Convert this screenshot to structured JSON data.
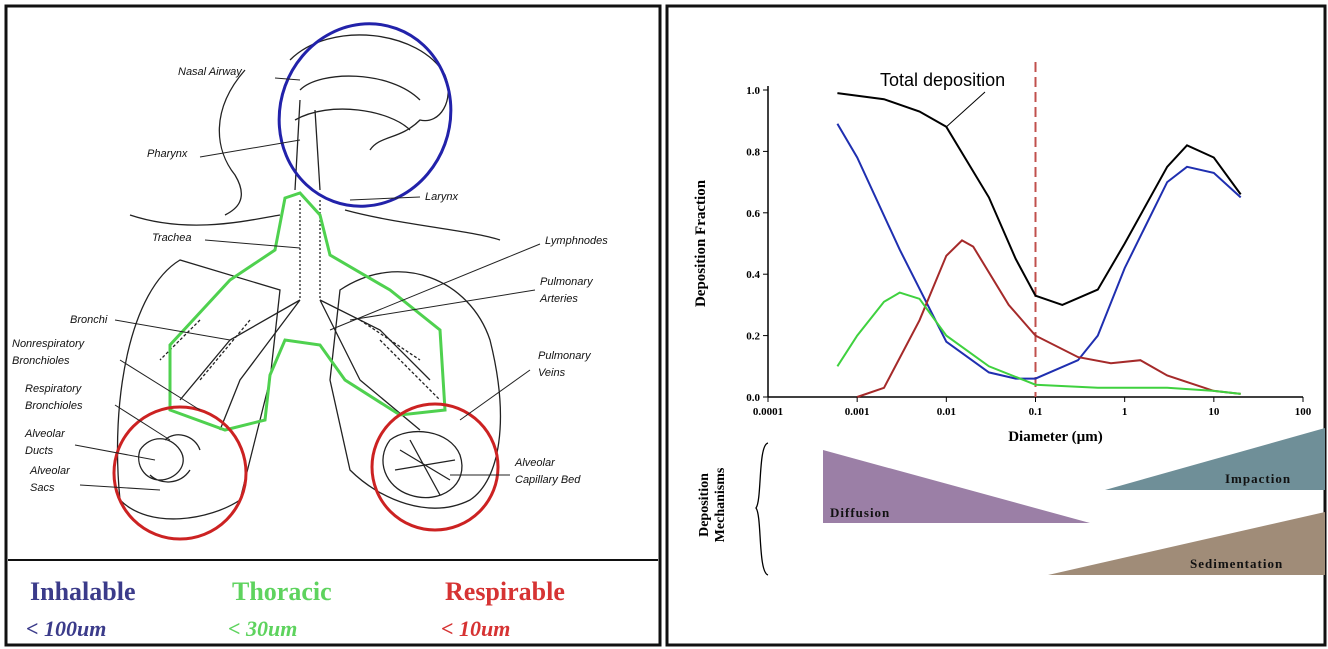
{
  "diagram": {
    "labels": [
      {
        "lines": [
          "Nasal Airway"
        ]
      },
      {
        "lines": [
          "Pharynx"
        ]
      },
      {
        "lines": [
          "Larynx"
        ]
      },
      {
        "lines": [
          "Trachea"
        ]
      },
      {
        "lines": [
          "Lymphnodes"
        ]
      },
      {
        "lines": [
          "Pulmonary",
          "Arteries"
        ]
      },
      {
        "lines": [
          "Bronchi"
        ]
      },
      {
        "lines": [
          "Nonrespiratory",
          "Bronchioles"
        ]
      },
      {
        "lines": [
          "Respiratory",
          "Bronchioles"
        ]
      },
      {
        "lines": [
          "Pulmonary",
          "Veins"
        ]
      },
      {
        "lines": [
          "Alveolar",
          "Ducts"
        ]
      },
      {
        "lines": [
          "Alveolar",
          "Sacs"
        ]
      },
      {
        "lines": [
          "Alveolar",
          "Capillary Bed"
        ]
      }
    ],
    "fractions": [
      {
        "name": "Inhalable",
        "size": "< 100um",
        "color": "#3b3b8a"
      },
      {
        "name": "Thoracic",
        "size": "< 30um",
        "color": "#5ed35e"
      },
      {
        "name": "Respirable",
        "size": "< 10um",
        "color": "#d63333"
      }
    ]
  },
  "chart_data": {
    "type": "line",
    "x_label": "Diameter (µm)",
    "y_label": "Deposition Fraction",
    "log_x": true,
    "xlim": [
      0.0001,
      100
    ],
    "xticks": [
      0.0001,
      0.001,
      0.01,
      0.1,
      1,
      10,
      100
    ],
    "ylim": [
      0,
      1
    ],
    "yticks": [
      {
        "value": 0,
        "label": "0.0"
      },
      {
        "value": 0.2,
        "label": "0.2"
      },
      {
        "value": 0.4,
        "label": "0.4"
      },
      {
        "value": 0.6,
        "label": "0.6"
      },
      {
        "value": 0.8,
        "label": "0.8"
      },
      {
        "value": 1,
        "label": "1.0"
      }
    ],
    "reference_x": 0.1,
    "reference_color": "#c0504d",
    "series": [
      {
        "name": "Total deposition",
        "color": "#000000",
        "x": [
          0.0006,
          0.002,
          0.005,
          0.01,
          0.03,
          0.06,
          0.1,
          0.2,
          0.5,
          1,
          3,
          5,
          10,
          20
        ],
        "values": [
          0.99,
          0.97,
          0.93,
          0.88,
          0.65,
          0.45,
          0.33,
          0.3,
          0.35,
          0.5,
          0.75,
          0.82,
          0.78,
          0.66
        ]
      },
      {
        "color": "#1f2fb0",
        "x": [
          0.0006,
          0.001,
          0.003,
          0.01,
          0.03,
          0.06,
          0.1,
          0.3,
          0.5,
          1,
          3,
          5,
          10,
          20
        ],
        "values": [
          0.89,
          0.78,
          0.48,
          0.18,
          0.08,
          0.06,
          0.06,
          0.12,
          0.2,
          0.42,
          0.7,
          0.75,
          0.73,
          0.65
        ]
      },
      {
        "color": "#a52a2a",
        "x": [
          0.001,
          0.002,
          0.005,
          0.01,
          0.015,
          0.02,
          0.05,
          0.1,
          0.3,
          0.7,
          1.5,
          3,
          10,
          20
        ],
        "values": [
          0,
          0.03,
          0.25,
          0.46,
          0.51,
          0.49,
          0.3,
          0.2,
          0.13,
          0.11,
          0.12,
          0.07,
          0.02,
          0.01
        ]
      },
      {
        "color": "#3fd13f",
        "x": [
          0.0006,
          0.001,
          0.002,
          0.003,
          0.005,
          0.01,
          0.03,
          0.1,
          0.5,
          3,
          10,
          20
        ],
        "values": [
          0.1,
          0.2,
          0.31,
          0.34,
          0.32,
          0.2,
          0.1,
          0.04,
          0.03,
          0.03,
          0.02,
          0.01
        ]
      }
    ],
    "mechanisms": {
      "title": [
        "Deposition",
        "Mechanisms"
      ],
      "items": [
        {
          "label": "Diffusion",
          "color": "#9b7fa6"
        },
        {
          "label": "Impaction",
          "color": "#6f8f98"
        },
        {
          "label": "Sedimentation",
          "color": "#a08c78"
        }
      ]
    }
  }
}
